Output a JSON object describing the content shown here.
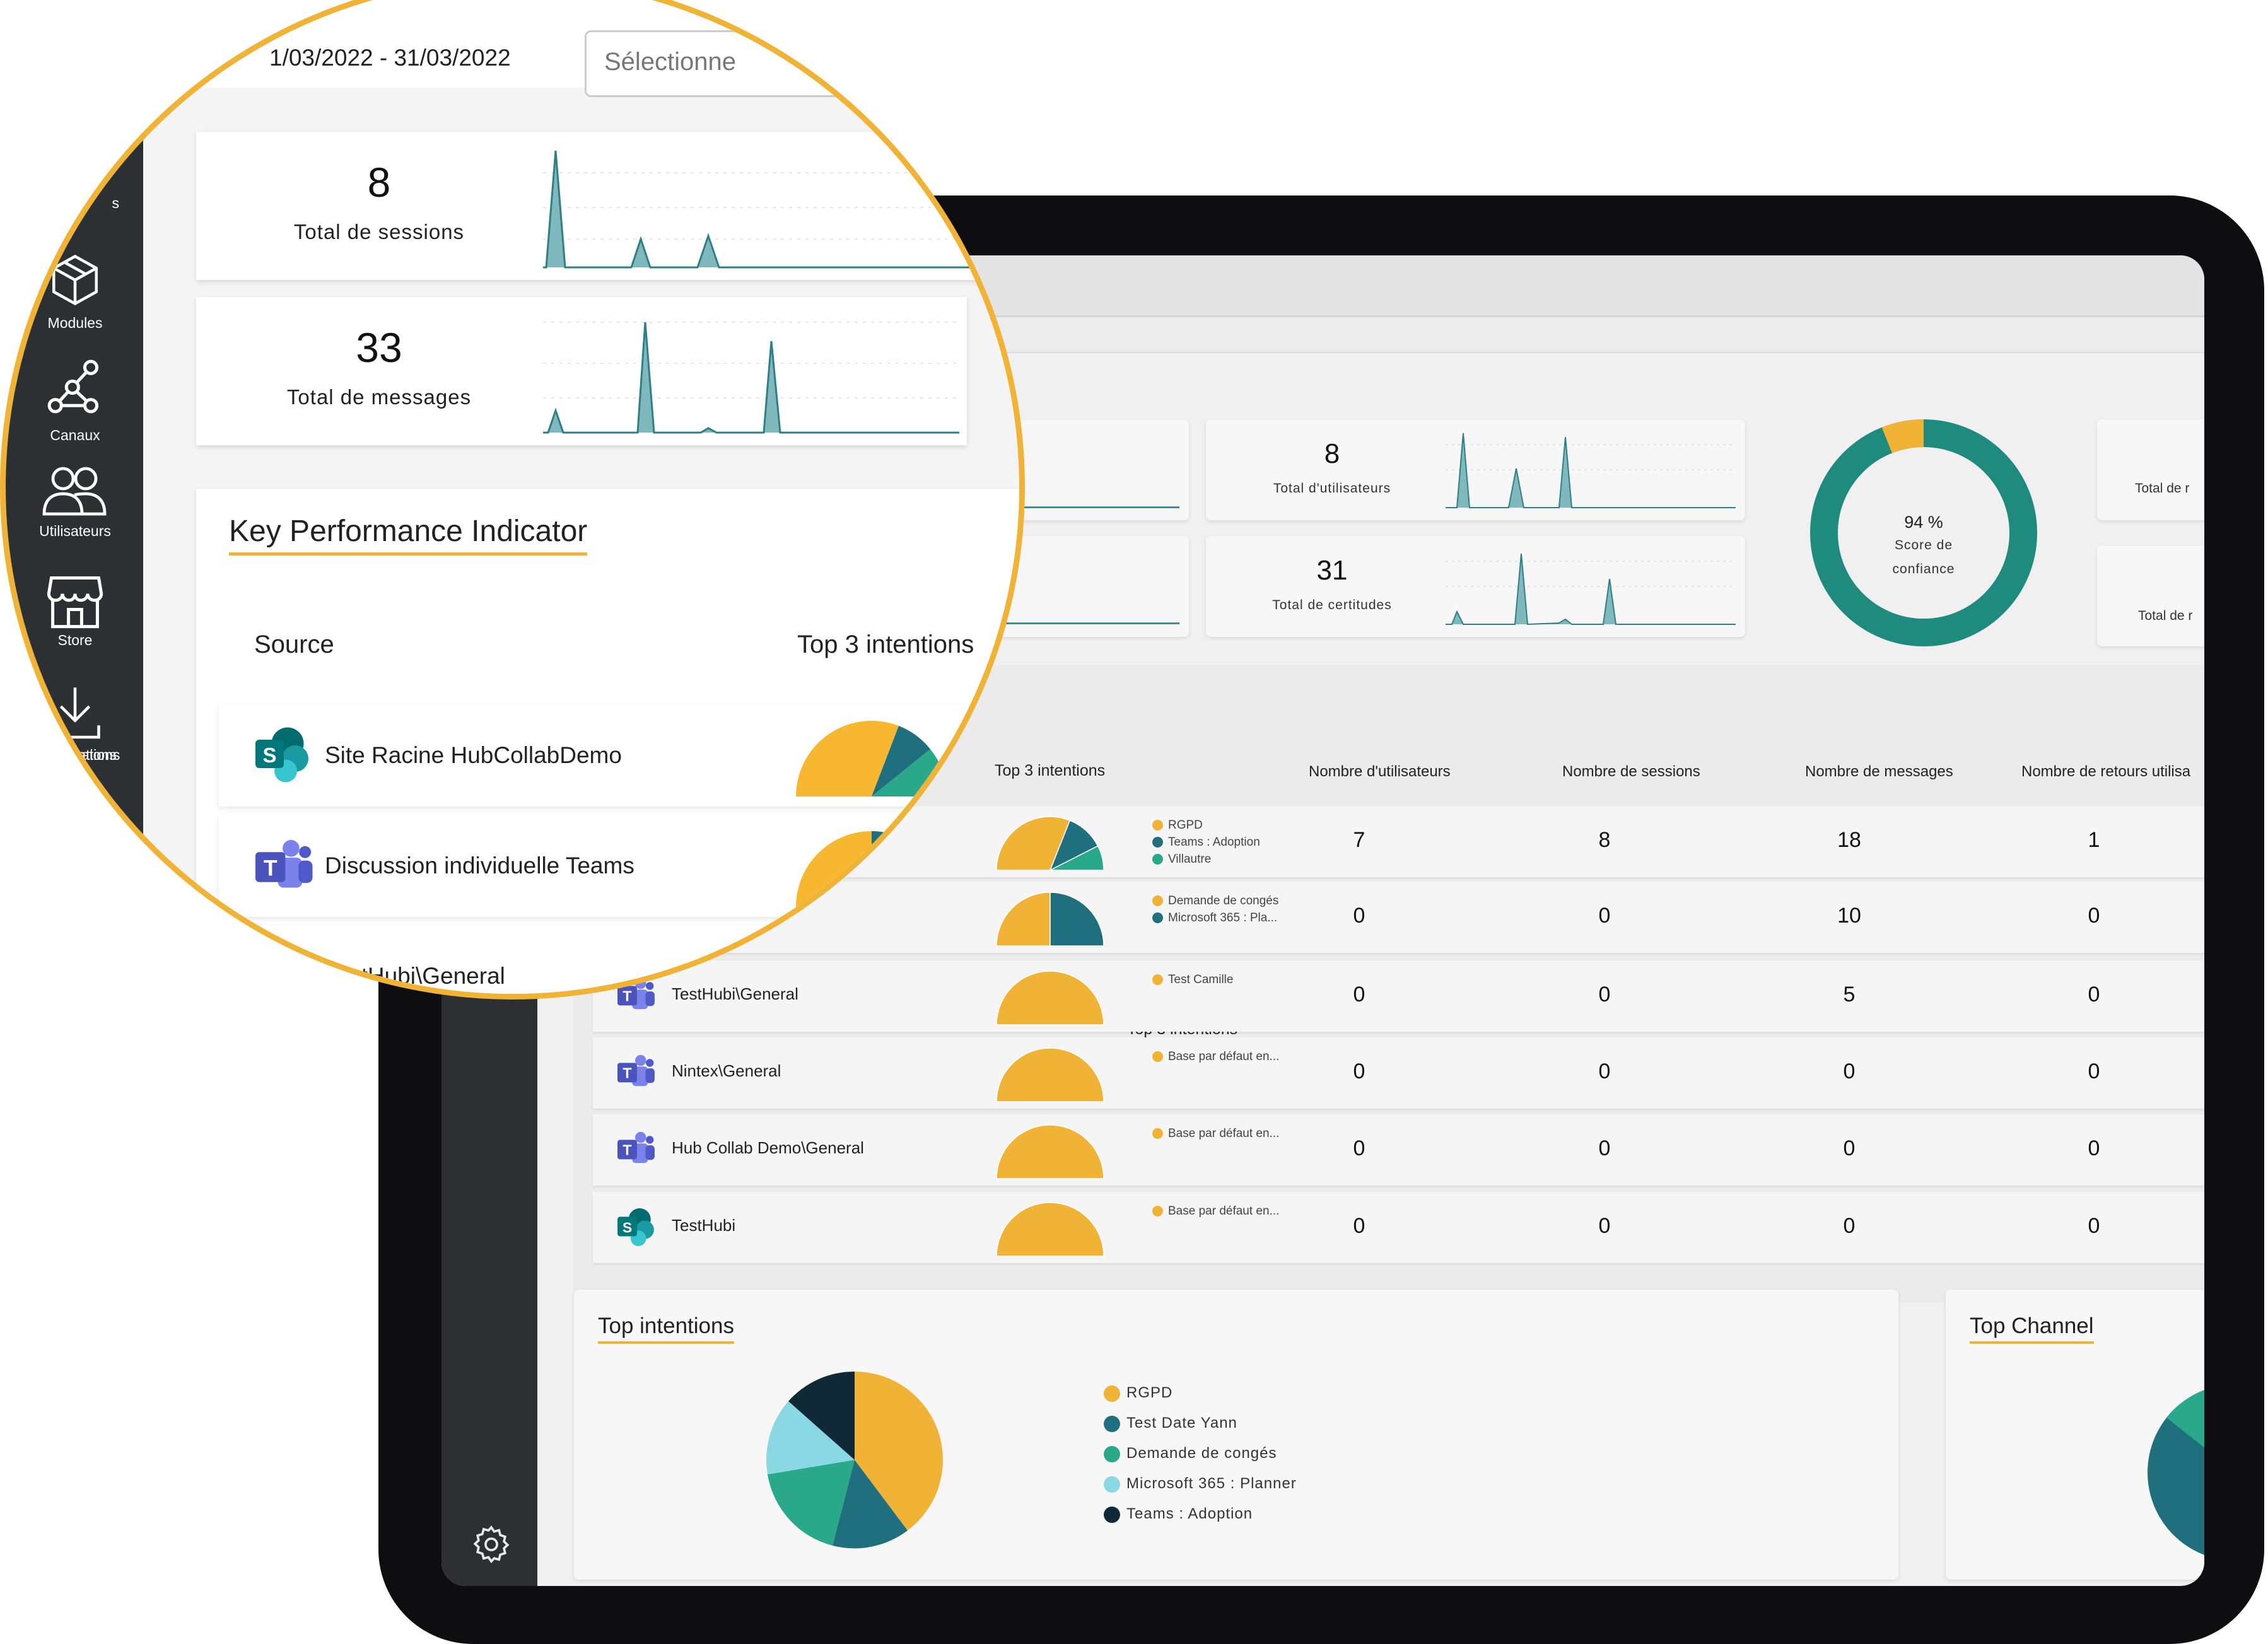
{
  "sidebar": {
    "items": [
      {
        "label": "Modules",
        "icon": "cube-icon"
      },
      {
        "label": "Canaux",
        "icon": "network-icon"
      },
      {
        "label": "Utilisateurs",
        "icon": "users-icon"
      },
      {
        "label": "Store",
        "icon": "store-icon"
      },
      {
        "label": "Installations",
        "icon": "download-icon"
      }
    ],
    "partial_top_label": "s",
    "partial_bottom_label": "ations"
  },
  "filters": {
    "date_range": "01/03/2022 - 31/03/2022",
    "date_range_visible": "1/03/2022 - 31/03/2022",
    "select_placeholder": "Sélectionne"
  },
  "stats": {
    "sessions": {
      "value": "8",
      "label": "Total de sessions"
    },
    "messages": {
      "value": "33",
      "label": "Total de messages"
    },
    "users": {
      "value": "8",
      "label": "Total d'utilisateurs"
    },
    "certitudes": {
      "value": "31",
      "label": "Total de certitudes"
    },
    "confidence": {
      "value": "94 %",
      "label_line1": "Score de",
      "label_line2": "confiance",
      "fraction": 0.94
    },
    "right_card_1": "Total de r",
    "right_card_2": "Total de r"
  },
  "kpi": {
    "title": "Key Performance Indicator",
    "columns": {
      "source": "Source",
      "top3": "Top 3 intentions",
      "users": "Nombre d'utilisateurs",
      "sessions": "Nombre de sessions",
      "messages": "Nombre de messages",
      "returns": "Nombre de retours utilisa"
    },
    "rows": [
      {
        "name": "Site Racine HubCollabDemo",
        "icon": "sharepoint-icon",
        "legend": [
          "RGPD",
          "Teams : Adoption",
          "Villautre"
        ],
        "users": "7",
        "sessions": "8",
        "messages": "18",
        "returns": "1"
      },
      {
        "name": "Discussion individuelle Teams",
        "visible_name": "elle Teams",
        "icon": "teams-icon",
        "legend": [
          "Demande de congés",
          "Microsoft 365 : Pla..."
        ],
        "users": "0",
        "sessions": "0",
        "messages": "10",
        "returns": "0"
      },
      {
        "name": "TestHubi\\General",
        "icon": "teams-icon",
        "legend": [
          "Test Camille"
        ],
        "users": "0",
        "sessions": "0",
        "messages": "5",
        "returns": "0"
      },
      {
        "name": "Nintex\\General",
        "icon": "teams-icon",
        "legend": [
          "Base par défaut en..."
        ],
        "users": "0",
        "sessions": "0",
        "messages": "0",
        "returns": "0"
      },
      {
        "name": "Hub Collab Demo\\General",
        "icon": "teams-icon",
        "legend": [
          "Base par défaut en..."
        ],
        "users": "0",
        "sessions": "0",
        "messages": "0",
        "returns": "0"
      },
      {
        "name": "TestHubi",
        "icon": "sharepoint-icon",
        "legend": [
          "Base par défaut en..."
        ],
        "users": "0",
        "sessions": "0",
        "messages": "0",
        "returns": "0"
      }
    ]
  },
  "top_intentions": {
    "title": "Top intentions",
    "legend": [
      "RGPD",
      "Test Date Yann",
      "Demande de congés",
      "Microsoft 365 : Planner",
      "Teams : Adoption"
    ]
  },
  "top_channel": {
    "title": "Top Channel"
  },
  "colors": {
    "accent": "#f0b335",
    "teal_dark": "#1f6f7e",
    "green": "#2aa88a",
    "light_blue": "#8ad8e4",
    "navy": "#0f2a36",
    "sidebar": "#2c3033",
    "donut": "#1f8a7e"
  }
}
